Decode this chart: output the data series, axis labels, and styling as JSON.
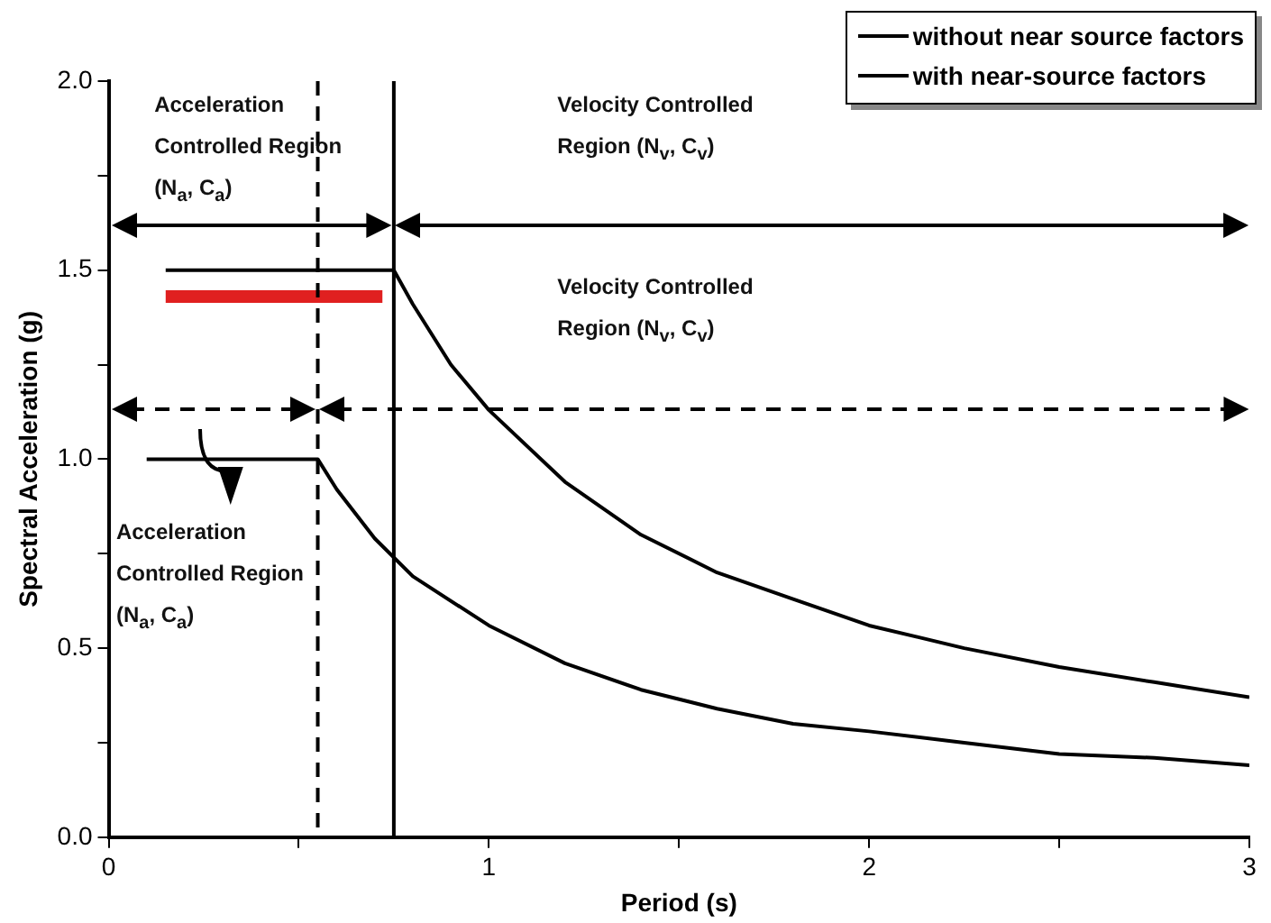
{
  "chart_data": {
    "type": "line",
    "xlabel": "Period (s)",
    "ylabel": "Spectral Acceleration (g)",
    "xlim": [
      0,
      3
    ],
    "xticks": [
      0,
      {
        "value": 0.5,
        "label": null
      },
      1,
      {
        "value": 1.5,
        "label": null
      },
      2,
      {
        "value": 2.5,
        "label": null
      },
      3
    ],
    "ylim": [
      0,
      2
    ],
    "yticks": [
      {
        "value": 0,
        "label": "0.0"
      },
      {
        "value": 0.25,
        "label": null
      },
      {
        "value": 0.5,
        "label": "0.5"
      },
      {
        "value": 0.75,
        "label": null
      },
      {
        "value": 1,
        "label": "1.0"
      },
      {
        "value": 1.25,
        "label": null
      },
      {
        "value": 1.5,
        "label": "1.5"
      },
      {
        "value": 1.75,
        "label": null
      },
      {
        "value": 2,
        "label": "2.0"
      }
    ],
    "grid": false,
    "legend": "top right",
    "marker": "none",
    "line_style": "solid",
    "series": [
      {
        "name": "without near source factors",
        "color": "#000000",
        "x": [
          0.1,
          0.55,
          0.6,
          0.7,
          0.8,
          1.0,
          1.2,
          1.4,
          1.6,
          1.8,
          2.0,
          2.25,
          2.5,
          2.75,
          3.0
        ],
        "values": [
          1.0,
          1.0,
          0.92,
          0.79,
          0.69,
          0.56,
          0.46,
          0.39,
          0.34,
          0.3,
          0.28,
          0.25,
          0.22,
          0.21,
          0.19
        ]
      },
      {
        "name": "with near-source factors",
        "color": "#000000",
        "x": [
          0.15,
          0.75,
          0.8,
          0.9,
          1.0,
          1.2,
          1.4,
          1.6,
          1.8,
          2.0,
          2.25,
          2.5,
          2.75,
          3.0
        ],
        "values": [
          1.5,
          1.5,
          1.41,
          1.25,
          1.13,
          0.94,
          0.8,
          0.7,
          0.63,
          0.56,
          0.5,
          0.45,
          0.41,
          0.37
        ]
      },
      {
        "color": "#e02020",
        "x": [
          0.15,
          0.72
        ],
        "values": [
          1.43,
          1.43
        ]
      }
    ],
    "ref_lines": [
      {
        "axis": "x",
        "value": 0.55,
        "color": "#000000",
        "line_style": "dashed"
      },
      {
        "axis": "x",
        "value": 0.75,
        "color": "#000000",
        "line_style": "solid"
      }
    ],
    "annotations": [
      "Acceleration Controlled Region (N$_{a}$, C$_{a}$)",
      "Velocity Controlled Region (N$_{v}$, C$_{v}$)",
      "Velocity Controlled Region (N$_{v}$, C$_{v}$)",
      "Acceleration Controlled Region (N$_{a}$, C$_{a}$)"
    ]
  }
}
